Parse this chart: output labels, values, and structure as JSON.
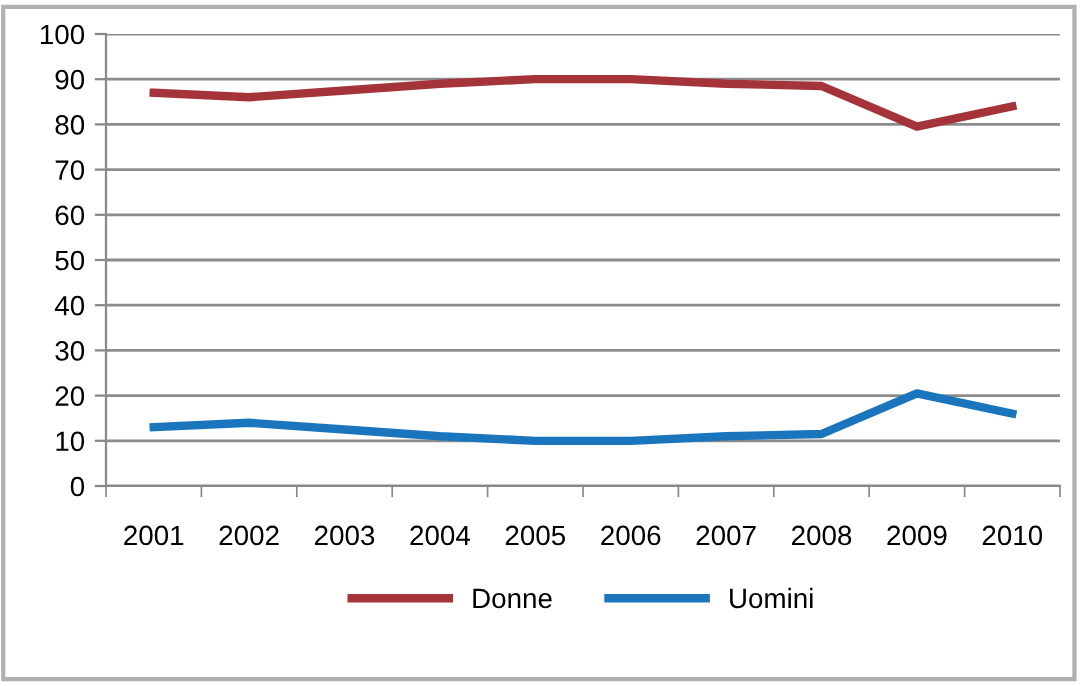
{
  "chart_data": {
    "type": "line",
    "categories": [
      "2001",
      "2002",
      "2003",
      "2004",
      "2005",
      "2006",
      "2007",
      "2008",
      "2009",
      "2010"
    ],
    "series": [
      {
        "name": "Donne",
        "color": "#a5343a",
        "values": [
          87,
          86,
          87.5,
          89,
          90,
          90,
          89,
          88.5,
          79.5,
          84
        ]
      },
      {
        "name": "Uomini",
        "color": "#1a75bc",
        "values": [
          13,
          14,
          12.5,
          11,
          10,
          10,
          11,
          11.5,
          20.5,
          16
        ]
      }
    ],
    "ylim": [
      0,
      100
    ],
    "yticks": [
      0,
      10,
      20,
      30,
      40,
      50,
      60,
      70,
      80,
      90,
      100
    ],
    "grid": "y",
    "legend": "bottom",
    "marker": "none",
    "line_style": "solid"
  }
}
